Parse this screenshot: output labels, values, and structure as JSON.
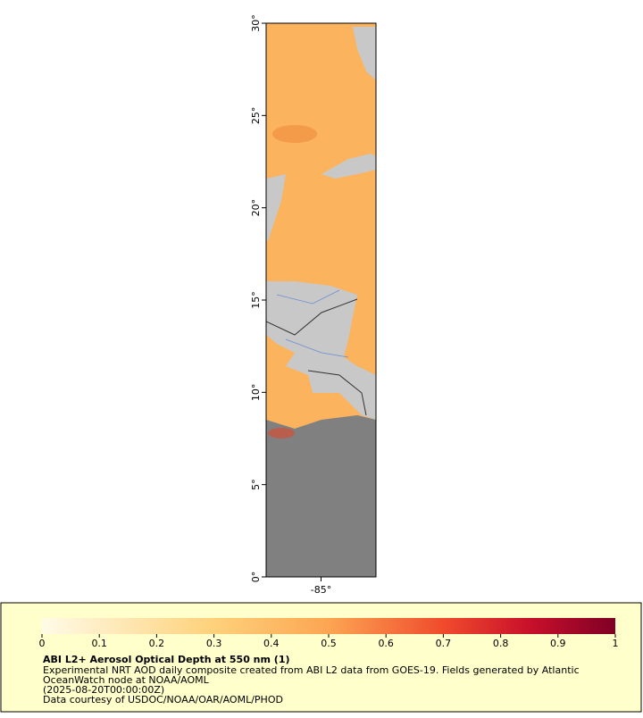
{
  "map": {
    "latlim": [
      0,
      30
    ],
    "lonlim": [
      -88,
      -82
    ],
    "lat_ticks": [
      {
        "value": 0,
        "label": "0°"
      },
      {
        "value": 5,
        "label": "5°"
      },
      {
        "value": 10,
        "label": "10°"
      },
      {
        "value": 15,
        "label": "15°"
      },
      {
        "value": 20,
        "label": "20°"
      },
      {
        "value": 25,
        "label": "25°"
      },
      {
        "value": 30,
        "label": "30°"
      }
    ],
    "lon_ticks": [
      {
        "value": -85,
        "label": "-85°"
      }
    ]
  },
  "colorbar": {
    "range": [
      0,
      1
    ],
    "ticks": [
      0,
      0.1,
      0.2,
      0.3,
      0.4,
      0.5,
      0.6,
      0.7,
      0.8,
      0.9,
      1
    ]
  },
  "legend": {
    "title": "ABI L2+ Aerosol Optical Depth at 550 nm (1)",
    "lines": [
      "Experimental NRT AOD daily composite created from ABI L2 data from GOES-19. Fields generated by Atlantic",
      "OceanWatch node at NOAA/AOML",
      "(2025-08-20T00:00:00Z)",
      "Data courtesy of USDOC/NOAA/OAR/AOML/PHOD"
    ]
  }
}
